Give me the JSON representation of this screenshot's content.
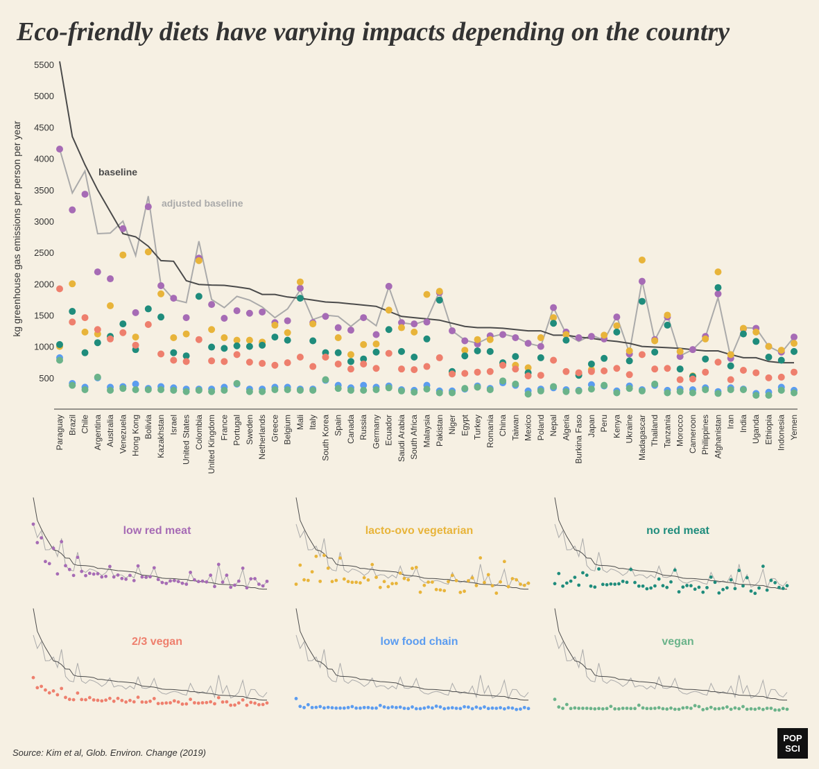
{
  "chart_data": {
    "type": "line",
    "title": "Eco-friendly diets have varying impacts depending on the country",
    "y_label": "kg greenhouse gas emissions per person per year",
    "source": "Source: Kim et al, Glob. Environ. Change (2019)",
    "logo_lines": [
      "POP",
      "SCI"
    ],
    "ylim": [
      0,
      5600
    ],
    "yticks": [
      500,
      1000,
      1500,
      2000,
      2500,
      3000,
      3500,
      4000,
      4500,
      5000,
      5500
    ],
    "categories": [
      "Paraguay",
      "Brazil",
      "Chile",
      "Argentina",
      "Australia",
      "Venezuela",
      "Hong Kong",
      "Bolivia",
      "Kazakhstan",
      "Israel",
      "United States",
      "Colombia",
      "United Kingdom",
      "France",
      "Portugal",
      "Sweden",
      "Netherlands",
      "Greece",
      "Belgium",
      "Mali",
      "Italy",
      "South Korea",
      "Spain",
      "Canada",
      "Russia",
      "Germany",
      "Ecuador",
      "Saudi Arabia",
      "South Africa",
      "Malaysia",
      "Pakistan",
      "Niger",
      "Egypt",
      "Turkey",
      "Romania",
      "China",
      "Taiwan",
      "Mexico",
      "Poland",
      "Nepal",
      "Algeria",
      "Burkina Faso",
      "Japan",
      "Peru",
      "Kenya",
      "Ukraine",
      "Madagascar",
      "Thailand",
      "Tanzania",
      "Morocco",
      "Cameroon",
      "Philippines",
      "Afghanistan",
      "Iran",
      "India",
      "Uganda",
      "Ethiopia",
      "Indonesia",
      "Yemen"
    ],
    "series": [
      {
        "name": "baseline",
        "style": "line",
        "color": "#4a4a4a",
        "values": [
          5550,
          4350,
          3900,
          3500,
          3150,
          2800,
          2750,
          2600,
          2370,
          2360,
          2050,
          1990,
          1980,
          1975,
          1950,
          1920,
          1830,
          1830,
          1790,
          1770,
          1740,
          1710,
          1700,
          1680,
          1660,
          1640,
          1560,
          1480,
          1460,
          1440,
          1420,
          1370,
          1320,
          1300,
          1300,
          1290,
          1270,
          1250,
          1250,
          1180,
          1180,
          1150,
          1130,
          1100,
          1080,
          1050,
          1000,
          990,
          980,
          970,
          950,
          930,
          930,
          870,
          820,
          820,
          760,
          740,
          740
        ]
      },
      {
        "name": "adjusted baseline",
        "style": "line",
        "color": "#aaaaaa",
        "values": [
          4150,
          3450,
          3800,
          2800,
          2810,
          3000,
          2450,
          3400,
          1980,
          1750,
          1700,
          2680,
          1750,
          1620,
          1800,
          1740,
          1630,
          1460,
          1600,
          1900,
          1430,
          1500,
          1480,
          1320,
          1480,
          1330,
          1950,
          1380,
          1350,
          1420,
          1880,
          1250,
          1100,
          1050,
          1150,
          1200,
          1150,
          1050,
          1000,
          1620,
          1200,
          1080,
          1180,
          1100,
          1480,
          900,
          2050,
          1100,
          1500,
          850,
          950,
          1150,
          1780,
          820,
          1300,
          1290,
          1000,
          900,
          1150
        ]
      },
      {
        "name": "low red meat",
        "style": "points",
        "color": "#a66bb5",
        "values": [
          4150,
          3180,
          3430,
          2190,
          2080,
          2880,
          1540,
          3230,
          1970,
          1770,
          1460,
          2410,
          1670,
          1450,
          1570,
          1530,
          1550,
          1380,
          1410,
          1930,
          1380,
          1480,
          1300,
          1260,
          1460,
          1190,
          1960,
          1380,
          1360,
          1390,
          1860,
          1250,
          1090,
          1040,
          1170,
          1190,
          1140,
          1050,
          1000,
          1620,
          1230,
          1140,
          1160,
          1120,
          1470,
          880,
          2040,
          1110,
          1470,
          840,
          950,
          1160,
          1840,
          810,
          1280,
          1290,
          1000,
          910,
          1150
        ]
      },
      {
        "name": "lacto-ovo vegetarian",
        "style": "points",
        "color": "#e8b43a",
        "values": [
          1000,
          2000,
          1230,
          1200,
          1650,
          2460,
          1150,
          2510,
          1840,
          1140,
          1200,
          2370,
          1270,
          1140,
          1100,
          1100,
          1070,
          1340,
          1220,
          2030,
          1360,
          830,
          1140,
          870,
          1030,
          1040,
          1580,
          1300,
          1230,
          1830,
          1880,
          580,
          940,
          1110,
          1110,
          720,
          700,
          660,
          1140,
          1460,
          1190,
          570,
          630,
          1180,
          1330,
          930,
          2380,
          1090,
          1500,
          920,
          530,
          1120,
          2190,
          870,
          1290,
          1230,
          1000,
          940,
          1050
        ]
      },
      {
        "name": "no red meat",
        "style": "points",
        "color": "#1f8c7c",
        "values": [
          1030,
          1560,
          900,
          1060,
          1160,
          1360,
          950,
          1600,
          1470,
          900,
          850,
          1800,
          990,
          970,
          1010,
          1000,
          1020,
          1150,
          1100,
          1770,
          1090,
          900,
          900,
          760,
          800,
          910,
          1270,
          920,
          830,
          1120,
          1740,
          600,
          850,
          930,
          920,
          740,
          840,
          580,
          820,
          1370,
          1100,
          540,
          720,
          810,
          1230,
          770,
          1720,
          910,
          1340,
          640,
          520,
          800,
          1940,
          690,
          1200,
          1080,
          830,
          780,
          920
        ]
      },
      {
        "name": "2/3 vegan",
        "style": "points",
        "color": "#ee7f6d",
        "values": [
          1920,
          1390,
          1460,
          1270,
          1120,
          1220,
          1020,
          1350,
          880,
          780,
          760,
          1110,
          770,
          760,
          870,
          750,
          730,
          700,
          740,
          830,
          680,
          830,
          720,
          640,
          720,
          650,
          890,
          640,
          630,
          680,
          820,
          560,
          570,
          590,
          600,
          700,
          640,
          530,
          540,
          780,
          600,
          580,
          600,
          610,
          650,
          550,
          870,
          640,
          650,
          470,
          480,
          590,
          750,
          470,
          620,
          580,
          500,
          510,
          590
        ]
      },
      {
        "name": "low food chain",
        "style": "points",
        "color": "#5b9cf0",
        "values": [
          820,
          410,
          350,
          500,
          350,
          360,
          400,
          330,
          360,
          340,
          320,
          320,
          320,
          350,
          400,
          320,
          320,
          350,
          350,
          320,
          320,
          460,
          380,
          340,
          380,
          350,
          370,
          310,
          300,
          380,
          290,
          290,
          320,
          370,
          330,
          420,
          380,
          290,
          320,
          340,
          310,
          300,
          390,
          370,
          290,
          370,
          310,
          380,
          300,
          320,
          310,
          340,
          280,
          340,
          320,
          250,
          270,
          350,
          300
        ]
      },
      {
        "name": "vegan",
        "style": "points",
        "color": "#6bb38a",
        "values": [
          780,
          380,
          310,
          510,
          300,
          330,
          310,
          310,
          310,
          300,
          280,
          300,
          280,
          300,
          410,
          280,
          280,
          310,
          310,
          300,
          300,
          470,
          330,
          300,
          300,
          310,
          340,
          290,
          270,
          320,
          260,
          260,
          330,
          350,
          310,
          450,
          400,
          240,
          290,
          360,
          280,
          290,
          320,
          380,
          260,
          330,
          290,
          400,
          260,
          280,
          260,
          310,
          250,
          310,
          310,
          220,
          220,
          300,
          260
        ]
      }
    ]
  }
}
